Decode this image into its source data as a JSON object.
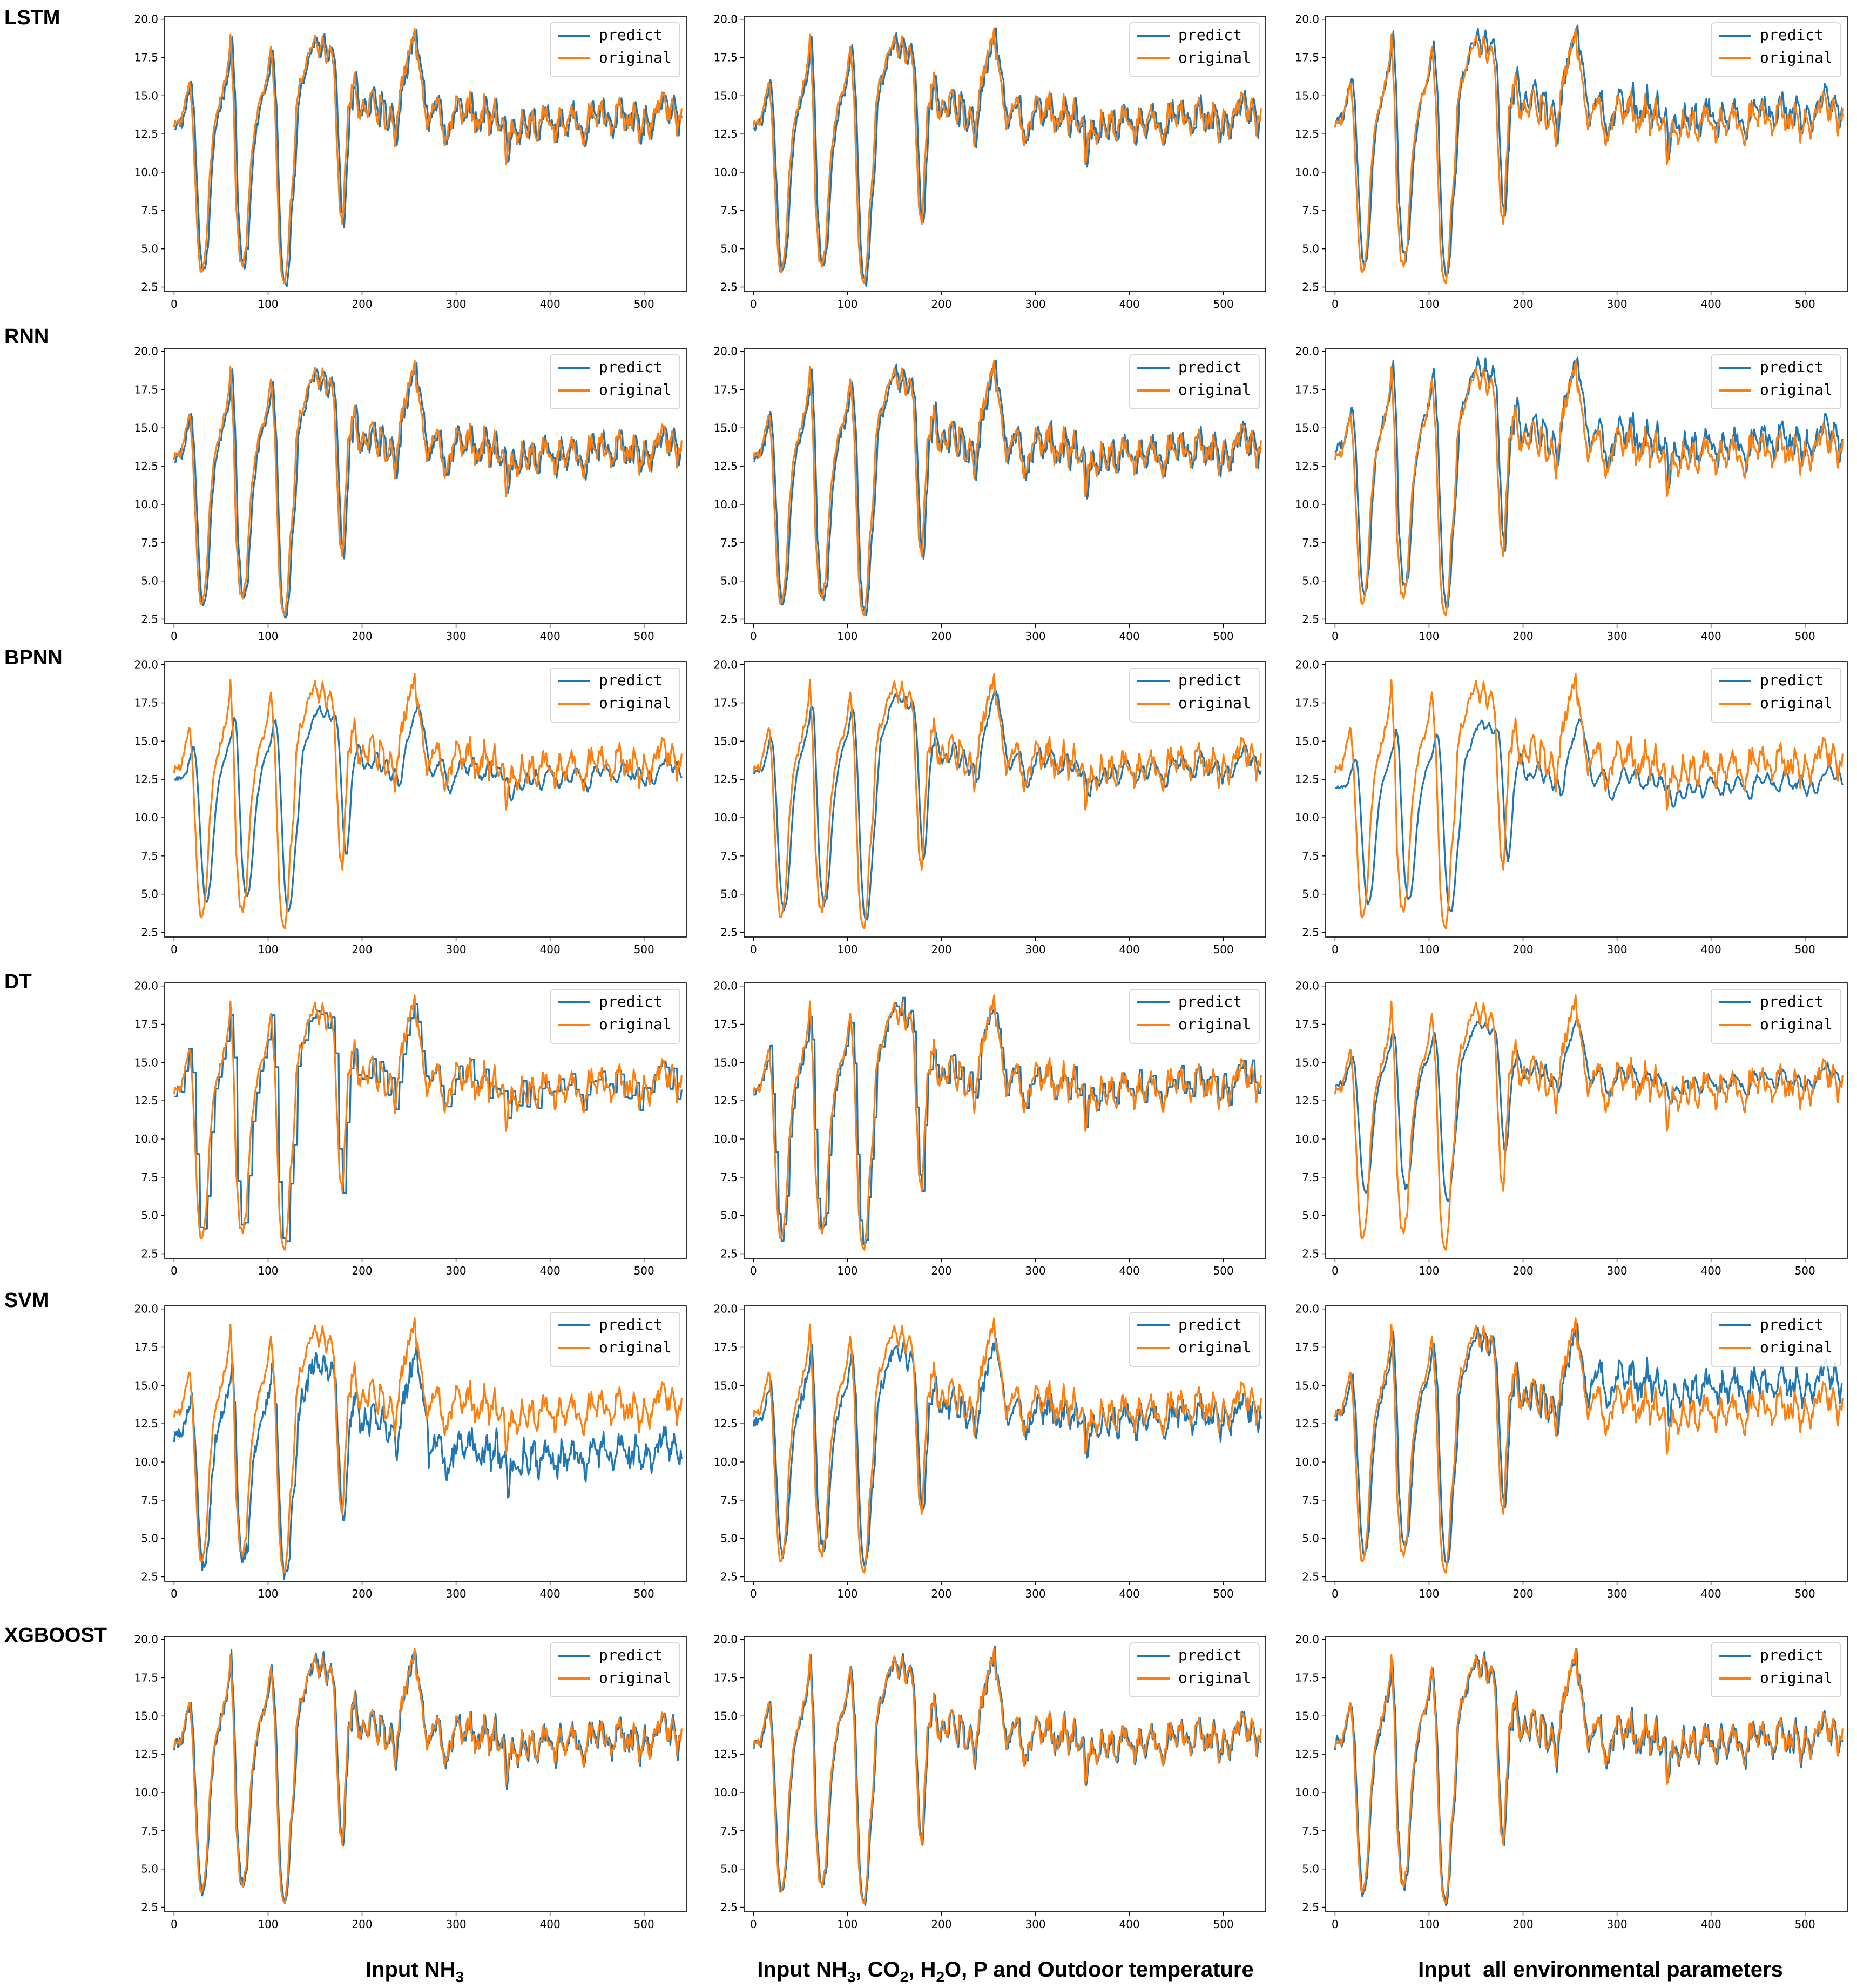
{
  "colors": {
    "predict": "#1f77b4",
    "original": "#ff7f0e",
    "axis": "#000000",
    "legend_border": "#cccccc"
  },
  "rows": [
    "LSTM",
    "RNN",
    "BPNN",
    "DT",
    "SVM",
    "XGBOOST"
  ],
  "column_labels": [
    {
      "text": "Input NH",
      "sub": "3",
      "rest": ""
    },
    {
      "text": "Input NH",
      "sub": "3",
      "rest": ", CO",
      "sub2": "2",
      "rest2": ", H",
      "sub3": "2",
      "rest3": "O, P and Outdoor temperature"
    },
    {
      "text": "Input  all environmental parameters",
      "sub": "",
      "rest": ""
    }
  ],
  "chart_data": {
    "type": "line",
    "grid": false,
    "legend_placement": "upper right",
    "xlim": [
      -10,
      545
    ],
    "ylim": [
      2.2,
      20.2
    ],
    "x_ticks": [
      0,
      100,
      200,
      300,
      400,
      500
    ],
    "y_ticks": [
      2.5,
      5.0,
      7.5,
      10.0,
      12.5,
      15.0,
      17.5,
      20.0
    ],
    "y_tick_labels": [
      "2.5",
      "5.0",
      "7.5",
      "10.0",
      "12.5",
      "15.0",
      "17.5",
      "20.0"
    ],
    "n_points": 541,
    "series_names": [
      "predict",
      "original"
    ],
    "original_keypoints": {
      "x": [
        0,
        6,
        10,
        14,
        17,
        20,
        24,
        27,
        30,
        34,
        38,
        41,
        44,
        48,
        52,
        56,
        60,
        63,
        66,
        70,
        73,
        77,
        81,
        86,
        90,
        95,
        100,
        103,
        107,
        110,
        112,
        115,
        118,
        121,
        124,
        127,
        130,
        134,
        138,
        142,
        146,
        150,
        154,
        158,
        162,
        166,
        170,
        173,
        176,
        179,
        182,
        185,
        188,
        192,
        196,
        200,
        205,
        210,
        215,
        220,
        225,
        230,
        235,
        240,
        245,
        250,
        253,
        256,
        260,
        265,
        270,
        275,
        280,
        285,
        290,
        295,
        300,
        305,
        310,
        315,
        320,
        325,
        330,
        335,
        340,
        345,
        350,
        353,
        356,
        360,
        365,
        370,
        375,
        380,
        385,
        390,
        395,
        400,
        405,
        410,
        415,
        420,
        425,
        430,
        435,
        440,
        445,
        450,
        455,
        460,
        465,
        470,
        475,
        480,
        485,
        490,
        495,
        500,
        505,
        510,
        515,
        520,
        525,
        530,
        535,
        540
      ],
      "y": [
        13.0,
        13.3,
        14.0,
        15.2,
        16.0,
        13.0,
        7.0,
        4.0,
        3.5,
        5.0,
        10.0,
        12.0,
        13.5,
        14.5,
        15.3,
        16.5,
        18.8,
        15.0,
        8.0,
        4.2,
        3.7,
        5.5,
        10.0,
        13.0,
        14.5,
        15.2,
        16.8,
        18.1,
        15.0,
        9.0,
        5.0,
        3.1,
        2.8,
        4.5,
        8.0,
        10.0,
        14.0,
        16.0,
        16.5,
        17.5,
        18.2,
        18.9,
        17.5,
        19.0,
        17.0,
        18.5,
        17.0,
        12.0,
        8.0,
        6.5,
        10.0,
        14.0,
        15.0,
        16.0,
        14.0,
        14.3,
        13.8,
        15.5,
        13.5,
        14.8,
        13.0,
        14.0,
        12.0,
        15.0,
        16.5,
        17.8,
        18.5,
        19.2,
        17.0,
        15.0,
        13.0,
        14.2,
        14.8,
        13.0,
        12.0,
        13.5,
        14.8,
        14.0,
        13.5,
        15.0,
        12.8,
        13.5,
        14.5,
        13.0,
        14.3,
        12.8,
        13.8,
        10.5,
        12.5,
        13.0,
        12.0,
        13.5,
        12.5,
        13.8,
        12.2,
        13.5,
        14.2,
        13.0,
        12.5,
        13.8,
        12.8,
        13.5,
        14.3,
        13.0,
        12.0,
        13.5,
        14.2,
        13.0,
        14.5,
        13.2,
        12.8,
        13.7,
        14.5,
        12.8,
        13.5,
        14.0,
        12.5,
        13.8,
        12.8,
        13.5,
        14.3,
        15.0,
        13.8,
        14.5,
        13.2,
        13.5
      ]
    },
    "panels": [
      {
        "row": 0,
        "col": 0,
        "label": "LSTM / Input NH3",
        "model": {
          "mode": "track",
          "lag": 2,
          "noise": 0.45,
          "bias": 0.0,
          "seed": 11,
          "spikes": [
            {
              "x": 112,
              "w": 8,
              "amp": 0.8
            }
          ]
        }
      },
      {
        "row": 0,
        "col": 1,
        "label": "LSTM / Input NH3, CO2, H2O, P and Outdoor temperature",
        "model": {
          "mode": "track",
          "lag": 2,
          "noise": 0.4,
          "bias": 0.0,
          "seed": 12
        }
      },
      {
        "row": 0,
        "col": 2,
        "label": "LSTM / Input all environmental parameters",
        "model": {
          "mode": "track",
          "lag": 2,
          "noise": 0.5,
          "bias": 0.4,
          "seed": 13
        }
      },
      {
        "row": 1,
        "col": 0,
        "label": "RNN / Input NH3",
        "model": {
          "mode": "track",
          "lag": 2,
          "noise": 0.45,
          "bias": 0.0,
          "seed": 21,
          "spikes": [
            {
              "x": 112,
              "w": 8,
              "amp": 1.0
            }
          ]
        }
      },
      {
        "row": 1,
        "col": 1,
        "label": "RNN / Input NH3, CO2, H2O, P and Outdoor temperature",
        "model": {
          "mode": "track",
          "lag": 2,
          "noise": 0.45,
          "bias": 0.0,
          "seed": 22
        }
      },
      {
        "row": 1,
        "col": 2,
        "label": "RNN / Input all environmental parameters",
        "model": {
          "mode": "track",
          "lag": 2,
          "noise": 0.55,
          "bias": 0.6,
          "seed": 23
        }
      },
      {
        "row": 2,
        "col": 0,
        "label": "BPNN / Input NH3",
        "model": {
          "mode": "smooth",
          "lag": 5,
          "noise": 0.25,
          "bias": -0.6,
          "damp": 0.85,
          "seed": 31
        }
      },
      {
        "row": 2,
        "col": 1,
        "label": "BPNN / Input NH3, CO2, H2O, P and Outdoor temperature",
        "model": {
          "mode": "smooth",
          "lag": 3,
          "noise": 0.3,
          "bias": -0.2,
          "damp": 0.95,
          "seed": 32
        }
      },
      {
        "row": 2,
        "col": 2,
        "label": "BPNN / Input all environmental parameters",
        "model": {
          "mode": "smooth",
          "lag": 6,
          "noise": 0.2,
          "bias": -1.2,
          "damp": 0.8,
          "seed": 33
        }
      },
      {
        "row": 3,
        "col": 0,
        "label": "DT / Input NH3",
        "model": {
          "mode": "step",
          "lag": 1,
          "noise": 0.6,
          "bias": 0.0,
          "seed": 41,
          "step": 4
        }
      },
      {
        "row": 3,
        "col": 1,
        "label": "DT / Input NH3, CO2, H2O, P and Outdoor temperature",
        "model": {
          "mode": "step",
          "lag": 1,
          "noise": 0.5,
          "bias": 0.1,
          "seed": 42,
          "step": 3
        }
      },
      {
        "row": 3,
        "col": 2,
        "label": "DT / Input all environmental parameters",
        "model": {
          "mode": "smooth",
          "lag": 3,
          "noise": 0.3,
          "bias": 0.4,
          "damp": 0.75,
          "seed": 43
        }
      },
      {
        "row": 4,
        "col": 0,
        "label": "SVM / Input NH3",
        "model": {
          "mode": "track",
          "lag": 2,
          "noise": 1.0,
          "bias": -1.4,
          "damp": 0.9,
          "seed": 51,
          "late_bias": -1.5
        }
      },
      {
        "row": 4,
        "col": 1,
        "label": "SVM / Input NH3, CO2, H2O, P and Outdoor temperature",
        "model": {
          "mode": "track",
          "lag": 2,
          "noise": 0.6,
          "bias": -0.5,
          "damp": 0.9,
          "seed": 52
        }
      },
      {
        "row": 4,
        "col": 2,
        "label": "SVM / Input all environmental parameters",
        "model": {
          "mode": "track",
          "lag": 2,
          "noise": 0.5,
          "bias": 0.0,
          "damp": 0.95,
          "seed": 53,
          "late_bias": 1.6
        }
      },
      {
        "row": 5,
        "col": 0,
        "label": "XGBOOST / Input NH3",
        "model": {
          "mode": "track",
          "lag": 1,
          "noise": 0.7,
          "bias": 0.0,
          "seed": 61
        }
      },
      {
        "row": 5,
        "col": 1,
        "label": "XGBOOST / Input NH3, CO2, H2O, P and Outdoor temperature",
        "model": {
          "mode": "track",
          "lag": 1,
          "noise": 0.4,
          "bias": 0.0,
          "seed": 62
        }
      },
      {
        "row": 5,
        "col": 2,
        "label": "XGBOOST / Input all environmental parameters",
        "model": {
          "mode": "track",
          "lag": 1,
          "noise": 0.7,
          "bias": 0.0,
          "seed": 63
        }
      }
    ]
  }
}
